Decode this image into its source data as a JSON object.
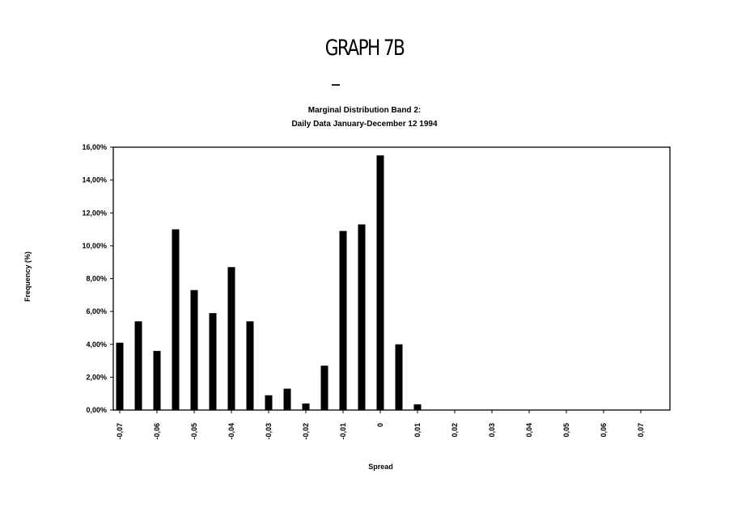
{
  "heading": "GRAPH 7B",
  "chart_data": {
    "type": "bar",
    "title_lines": [
      "Marginal Distribution Band 2:",
      "Daily Data January-December 12 1994"
    ],
    "xlabel": "Spread",
    "ylabel": "Frequency (%)",
    "ylim": [
      0,
      16
    ],
    "yticks": [
      0,
      2,
      4,
      6,
      8,
      10,
      12,
      14,
      16
    ],
    "ytick_labels": [
      "0,00%",
      "2,00%",
      "4,00%",
      "6,00%",
      "8,00%",
      "10,00%",
      "12,00%",
      "14,00%",
      "16,00%"
    ],
    "xlim": [
      -0.07,
      0.075
    ],
    "xticks": [
      -0.07,
      -0.06,
      -0.05,
      -0.04,
      -0.03,
      -0.02,
      -0.01,
      0,
      0.01,
      0.02,
      0.03,
      0.04,
      0.05,
      0.06,
      0.07
    ],
    "xtick_labels": [
      "-0,07",
      "-0,06",
      "-0,05",
      "-0,04",
      "-0,03",
      "-0,02",
      "-0,01",
      "0",
      "0,01",
      "0,02",
      "0,03",
      "0,04",
      "0,05",
      "0,06",
      "0,07"
    ],
    "bar_color": "#000000",
    "bars": [
      {
        "x": -0.07,
        "value": 4.1
      },
      {
        "x": -0.065,
        "value": 5.4
      },
      {
        "x": -0.06,
        "value": 3.6
      },
      {
        "x": -0.055,
        "value": 11.0
      },
      {
        "x": -0.05,
        "value": 7.3
      },
      {
        "x": -0.045,
        "value": 5.9
      },
      {
        "x": -0.04,
        "value": 8.7
      },
      {
        "x": -0.035,
        "value": 5.4
      },
      {
        "x": -0.03,
        "value": 0.9
      },
      {
        "x": -0.025,
        "value": 1.3
      },
      {
        "x": -0.02,
        "value": 0.4
      },
      {
        "x": -0.015,
        "value": 2.7
      },
      {
        "x": -0.01,
        "value": 10.9
      },
      {
        "x": -0.005,
        "value": 11.3
      },
      {
        "x": 0.0,
        "value": 15.5
      },
      {
        "x": 0.005,
        "value": 4.0
      },
      {
        "x": 0.01,
        "value": 0.35
      }
    ],
    "grid": false,
    "legend": "none"
  }
}
